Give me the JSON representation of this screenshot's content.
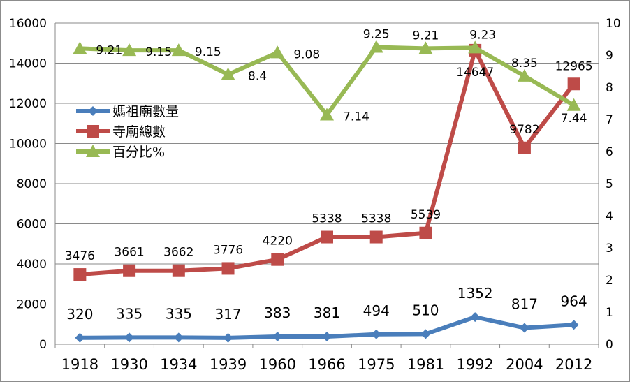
{
  "chart_data": {
    "type": "line",
    "categories": [
      "1918",
      "1930",
      "1934",
      "1939",
      "1960",
      "1966",
      "1975",
      "1981",
      "1992",
      "2004",
      "2012"
    ],
    "left_axis": {
      "ticks": [
        "0",
        "2000",
        "4000",
        "6000",
        "8000",
        "10000",
        "12000",
        "14000",
        "16000"
      ],
      "ylim": [
        0,
        16000
      ]
    },
    "right_axis": {
      "ticks": [
        "0",
        "1",
        "2",
        "3",
        "4",
        "5",
        "6",
        "7",
        "8",
        "9",
        "10"
      ],
      "ylim": [
        0,
        10
      ]
    },
    "grid": true,
    "legend": {
      "placement": "left-middle",
      "entries": [
        "媽祖廟數量",
        "寺廟總數",
        "百分比%"
      ]
    },
    "series": [
      {
        "name": "媽祖廟數量",
        "axis": "left",
        "marker": "diamond",
        "color": "#4a7ebb",
        "values": [
          320,
          335,
          335,
          317,
          383,
          381,
          494,
          510,
          1352,
          817,
          964
        ],
        "labels": [
          "320",
          "335",
          "335",
          "317",
          "383",
          "381",
          "494",
          "510",
          "1352",
          "817",
          "964"
        ]
      },
      {
        "name": "寺廟總數",
        "axis": "left",
        "marker": "square",
        "color": "#be4b48",
        "values": [
          3476,
          3661,
          3662,
          3776,
          4220,
          5338,
          5338,
          5539,
          14647,
          9782,
          12965
        ],
        "labels": [
          "3476",
          "3661",
          "3662",
          "3776",
          "4220",
          "5338",
          "5338",
          "5539",
          "14647",
          "9782",
          "12965"
        ]
      },
      {
        "name": "百分比%",
        "axis": "right",
        "marker": "triangle",
        "color": "#98b954",
        "values": [
          9.21,
          9.15,
          9.15,
          8.4,
          9.08,
          7.14,
          9.25,
          9.21,
          9.23,
          8.35,
          7.44
        ],
        "labels": [
          "9.21",
          "9.15",
          "9.15",
          "8.4",
          "9.08",
          "7.14",
          "9.25",
          "9.21",
          "9.23",
          "8.35",
          "7.44"
        ]
      }
    ]
  }
}
